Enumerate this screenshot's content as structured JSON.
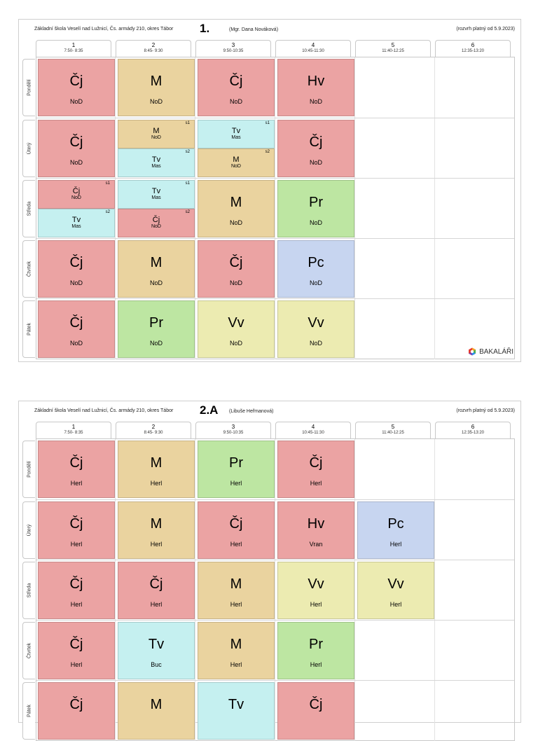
{
  "periods": [
    {
      "num": "1",
      "time": "7:50- 8:35"
    },
    {
      "num": "2",
      "time": "8:45- 9:30"
    },
    {
      "num": "3",
      "time": "9:50-10:35"
    },
    {
      "num": "4",
      "time": "10:45-11:30"
    },
    {
      "num": "5",
      "time": "11:40-12:25"
    },
    {
      "num": "6",
      "time": "12:35-13:20"
    }
  ],
  "days": [
    "Pondělí",
    "Úterý",
    "Středa",
    "Čtvrtek",
    "Pátek"
  ],
  "colors": {
    "Cj": "#eba3a3",
    "M": "#ead39f",
    "Tv": "#c5f0f0",
    "Pr": "#bde6a2",
    "Pc": "#c7d5f0",
    "Vv": "#ecebb1",
    "Hv": "#eba3a3"
  },
  "timetable1": {
    "school": "Základní škola Veselí nad Lužnicí, Čs. armády 210, okres Tábor",
    "class_name": "1.",
    "teacher": "(Mgr. Dana Nováková)",
    "valid_from": "(rozvrh platný od 5.9.2023)",
    "brand": "BAKALÁŘI",
    "rows": [
      {
        "day": "Pondělí",
        "lessons": [
          {
            "parts": [
              {
                "subject": "Čj",
                "teacher": "NoD",
                "color": "cj"
              }
            ]
          },
          {
            "parts": [
              {
                "subject": "M",
                "teacher": "NoD",
                "color": "m"
              }
            ]
          },
          {
            "parts": [
              {
                "subject": "Čj",
                "teacher": "NoD",
                "color": "cj"
              }
            ]
          },
          {
            "parts": [
              {
                "subject": "Hv",
                "teacher": "NoD",
                "color": "hv"
              }
            ]
          }
        ]
      },
      {
        "day": "Úterý",
        "lessons": [
          {
            "parts": [
              {
                "subject": "Čj",
                "teacher": "NoD",
                "color": "cj"
              }
            ]
          },
          {
            "parts": [
              {
                "subject": "M",
                "teacher": "NoD",
                "color": "m",
                "group": "s1"
              },
              {
                "subject": "Tv",
                "teacher": "Mas",
                "color": "tv",
                "group": "s2"
              }
            ]
          },
          {
            "parts": [
              {
                "subject": "Tv",
                "teacher": "Mas",
                "color": "tv",
                "group": "s1"
              },
              {
                "subject": "M",
                "teacher": "NoD",
                "color": "m",
                "group": "s2"
              }
            ]
          },
          {
            "parts": [
              {
                "subject": "Čj",
                "teacher": "NoD",
                "color": "cj"
              }
            ]
          }
        ]
      },
      {
        "day": "Středa",
        "lessons": [
          {
            "parts": [
              {
                "subject": "Čj",
                "teacher": "NoD",
                "color": "cj",
                "group": "s1"
              },
              {
                "subject": "Tv",
                "teacher": "Mas",
                "color": "tv",
                "group": "s2"
              }
            ]
          },
          {
            "parts": [
              {
                "subject": "Tv",
                "teacher": "Mas",
                "color": "tv",
                "group": "s1"
              },
              {
                "subject": "Čj",
                "teacher": "NoD",
                "color": "cj",
                "group": "s2"
              }
            ]
          },
          {
            "parts": [
              {
                "subject": "M",
                "teacher": "NoD",
                "color": "m"
              }
            ]
          },
          {
            "parts": [
              {
                "subject": "Pr",
                "teacher": "NoD",
                "color": "pr"
              }
            ]
          }
        ]
      },
      {
        "day": "Čtvrtek",
        "lessons": [
          {
            "parts": [
              {
                "subject": "Čj",
                "teacher": "NoD",
                "color": "cj"
              }
            ]
          },
          {
            "parts": [
              {
                "subject": "M",
                "teacher": "NoD",
                "color": "m"
              }
            ]
          },
          {
            "parts": [
              {
                "subject": "Čj",
                "teacher": "NoD",
                "color": "cj"
              }
            ]
          },
          {
            "parts": [
              {
                "subject": "Pc",
                "teacher": "NoD",
                "color": "pc"
              }
            ]
          }
        ]
      },
      {
        "day": "Pátek",
        "lessons": [
          {
            "parts": [
              {
                "subject": "Čj",
                "teacher": "NoD",
                "color": "cj"
              }
            ]
          },
          {
            "parts": [
              {
                "subject": "Pr",
                "teacher": "NoD",
                "color": "pr"
              }
            ]
          },
          {
            "parts": [
              {
                "subject": "Vv",
                "teacher": "NoD",
                "color": "vv"
              }
            ]
          },
          {
            "parts": [
              {
                "subject": "Vv",
                "teacher": "NoD",
                "color": "vv"
              }
            ]
          }
        ]
      }
    ]
  },
  "timetable2": {
    "school": "Základní škola Veselí nad Lužnicí, Čs. armády 210, okres Tábor",
    "class_name": "2.A",
    "teacher": "(Libuše Heřmanová)",
    "valid_from": "(rozvrh platný od 5.9.2023)",
    "rows": [
      {
        "day": "Pondělí",
        "lessons": [
          {
            "parts": [
              {
                "subject": "Čj",
                "teacher": "Herl",
                "color": "cj"
              }
            ]
          },
          {
            "parts": [
              {
                "subject": "M",
                "teacher": "Herl",
                "color": "m"
              }
            ]
          },
          {
            "parts": [
              {
                "subject": "Pr",
                "teacher": "Herl",
                "color": "pr"
              }
            ]
          },
          {
            "parts": [
              {
                "subject": "Čj",
                "teacher": "Herl",
                "color": "cj"
              }
            ]
          }
        ]
      },
      {
        "day": "Úterý",
        "lessons": [
          {
            "parts": [
              {
                "subject": "Čj",
                "teacher": "Herl",
                "color": "cj"
              }
            ]
          },
          {
            "parts": [
              {
                "subject": "M",
                "teacher": "Herl",
                "color": "m"
              }
            ]
          },
          {
            "parts": [
              {
                "subject": "Čj",
                "teacher": "Herl",
                "color": "cj"
              }
            ]
          },
          {
            "parts": [
              {
                "subject": "Hv",
                "teacher": "Vran",
                "color": "hv"
              }
            ]
          },
          {
            "parts": [
              {
                "subject": "Pc",
                "teacher": "Herl",
                "color": "pc"
              }
            ]
          }
        ]
      },
      {
        "day": "Středa",
        "lessons": [
          {
            "parts": [
              {
                "subject": "Čj",
                "teacher": "Herl",
                "color": "cj"
              }
            ]
          },
          {
            "parts": [
              {
                "subject": "Čj",
                "teacher": "Herl",
                "color": "cj"
              }
            ]
          },
          {
            "parts": [
              {
                "subject": "M",
                "teacher": "Herl",
                "color": "m"
              }
            ]
          },
          {
            "parts": [
              {
                "subject": "Vv",
                "teacher": "Herl",
                "color": "vv"
              }
            ]
          },
          {
            "parts": [
              {
                "subject": "Vv",
                "teacher": "Herl",
                "color": "vv"
              }
            ]
          }
        ]
      },
      {
        "day": "Čtvrtek",
        "lessons": [
          {
            "parts": [
              {
                "subject": "Čj",
                "teacher": "Herl",
                "color": "cj"
              }
            ]
          },
          {
            "parts": [
              {
                "subject": "Tv",
                "teacher": "Buc",
                "color": "tv"
              }
            ]
          },
          {
            "parts": [
              {
                "subject": "M",
                "teacher": "Herl",
                "color": "m"
              }
            ]
          },
          {
            "parts": [
              {
                "subject": "Pr",
                "teacher": "Herl",
                "color": "pr"
              }
            ]
          }
        ]
      },
      {
        "day": "Pátek",
        "lessons": [
          {
            "parts": [
              {
                "subject": "Čj",
                "teacher": "",
                "color": "cj"
              }
            ]
          },
          {
            "parts": [
              {
                "subject": "M",
                "teacher": "",
                "color": "m"
              }
            ]
          },
          {
            "parts": [
              {
                "subject": "Tv",
                "teacher": "",
                "color": "tv"
              }
            ]
          },
          {
            "parts": [
              {
                "subject": "Čj",
                "teacher": "",
                "color": "cj"
              }
            ]
          }
        ]
      }
    ]
  }
}
